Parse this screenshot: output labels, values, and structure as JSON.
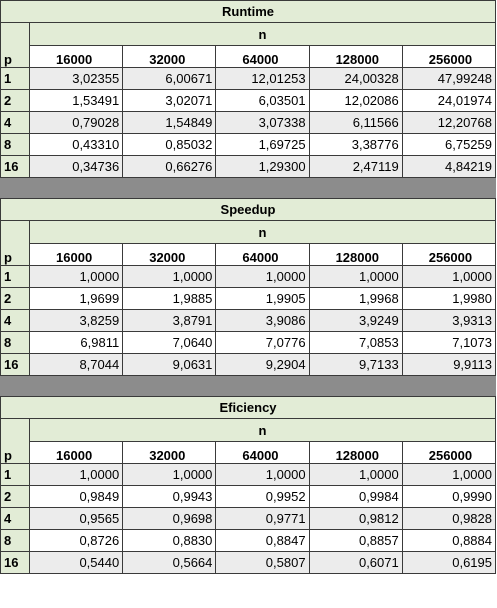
{
  "column_label": "n",
  "row_label": "p",
  "columns": [
    "16000",
    "32000",
    "64000",
    "128000",
    "256000"
  ],
  "runtime": {
    "title": "Runtime",
    "rows": [
      {
        "p": "1",
        "values": [
          "3,02355",
          "6,00671",
          "12,01253",
          "24,00328",
          "47,99248"
        ]
      },
      {
        "p": "2",
        "values": [
          "1,53491",
          "3,02071",
          "6,03501",
          "12,02086",
          "24,01974"
        ]
      },
      {
        "p": "4",
        "values": [
          "0,79028",
          "1,54849",
          "3,07338",
          "6,11566",
          "12,20768"
        ]
      },
      {
        "p": "8",
        "values": [
          "0,43310",
          "0,85032",
          "1,69725",
          "3,38776",
          "6,75259"
        ]
      },
      {
        "p": "16",
        "values": [
          "0,34736",
          "0,66276",
          "1,29300",
          "2,47119",
          "4,84219"
        ]
      }
    ]
  },
  "speedup": {
    "title": "Speedup",
    "rows": [
      {
        "p": "1",
        "values": [
          "1,0000",
          "1,0000",
          "1,0000",
          "1,0000",
          "1,0000"
        ]
      },
      {
        "p": "2",
        "values": [
          "1,9699",
          "1,9885",
          "1,9905",
          "1,9968",
          "1,9980"
        ]
      },
      {
        "p": "4",
        "values": [
          "3,8259",
          "3,8791",
          "3,9086",
          "3,9249",
          "3,9313"
        ]
      },
      {
        "p": "8",
        "values": [
          "6,9811",
          "7,0640",
          "7,0776",
          "7,0853",
          "7,1073"
        ]
      },
      {
        "p": "16",
        "values": [
          "8,7044",
          "9,0631",
          "9,2904",
          "9,7133",
          "9,9113"
        ]
      }
    ]
  },
  "efficiency": {
    "title": "Eficiency",
    "rows": [
      {
        "p": "1",
        "values": [
          "1,0000",
          "1,0000",
          "1,0000",
          "1,0000",
          "1,0000"
        ]
      },
      {
        "p": "2",
        "values": [
          "0,9849",
          "0,9943",
          "0,9952",
          "0,9984",
          "0,9990"
        ]
      },
      {
        "p": "4",
        "values": [
          "0,9565",
          "0,9698",
          "0,9771",
          "0,9812",
          "0,9828"
        ]
      },
      {
        "p": "8",
        "values": [
          "0,8726",
          "0,8830",
          "0,8847",
          "0,8857",
          "0,8884"
        ]
      },
      {
        "p": "16",
        "values": [
          "0,5440",
          "0,5664",
          "0,5807",
          "0,6071",
          "0,6195"
        ]
      }
    ]
  }
}
